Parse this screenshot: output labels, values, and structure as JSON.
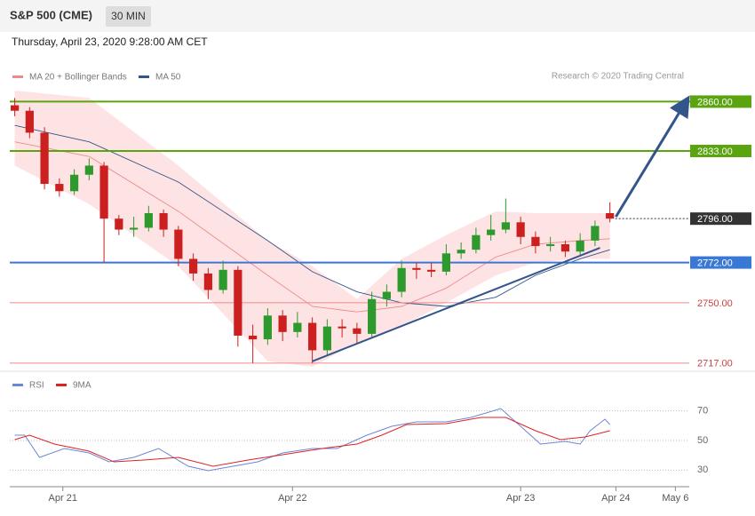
{
  "chart_data": {
    "type": "candlestick",
    "title": "S&P 500 (CME)",
    "interval": "30 MIN",
    "subtitle": "Thursday, April 23, 2020 9:28:00 AM CET",
    "source": "Research © 2020 Trading Central",
    "xlim": [
      0,
      137
    ],
    "xticks": [
      {
        "value": 10.7,
        "label": "Apr 21"
      },
      {
        "value": 57,
        "label": "Apr 22"
      },
      {
        "value": 103,
        "label": "Apr 23"
      },
      {
        "value": 122.2,
        "label": "Apr 24"
      },
      {
        "value": 134.2,
        "label": "May 6"
      }
    ],
    "ylim": [
      2714,
      2867
    ],
    "up_color": "#2e9a2e",
    "down_color": "#cc2020",
    "candles": {
      "x": [
        1,
        4,
        7,
        10,
        13,
        16,
        19,
        22,
        25,
        28,
        31,
        34,
        37,
        40,
        43,
        46,
        49,
        52,
        55,
        58,
        61,
        64,
        67,
        70,
        73,
        76,
        79,
        82,
        85,
        88,
        91,
        94,
        97,
        100,
        103,
        106,
        109,
        112,
        115,
        118,
        121
      ],
      "open": [
        2858,
        2855,
        2843,
        2815,
        2811,
        2820,
        2825,
        2796,
        2790,
        2791,
        2799,
        2790,
        2774,
        2766,
        2757,
        2768,
        2732,
        2730,
        2743,
        2734,
        2739,
        2724,
        2737,
        2736,
        2733,
        2752,
        2756,
        2769,
        2768,
        2767,
        2777,
        2779,
        2787,
        2790,
        2794,
        2786,
        2781,
        2782,
        2778,
        2784,
        2799
      ],
      "high": [
        2862,
        2857,
        2846,
        2818,
        2823,
        2829,
        2827,
        2798,
        2797,
        2803,
        2801,
        2792,
        2777,
        2769,
        2773,
        2770,
        2738,
        2747,
        2746,
        2745,
        2742,
        2741,
        2741,
        2739,
        2756,
        2760,
        2773,
        2772,
        2772,
        2782,
        2783,
        2791,
        2798,
        2807,
        2797,
        2789,
        2786,
        2784,
        2788,
        2795,
        2805
      ],
      "low": [
        2852,
        2840,
        2812,
        2808,
        2809,
        2817,
        2772,
        2787,
        2786,
        2789,
        2786,
        2770,
        2762,
        2752,
        2755,
        2726,
        2717,
        2727,
        2729,
        2731,
        2717,
        2721,
        2731,
        2728,
        2731,
        2748,
        2753,
        2763,
        2764,
        2765,
        2774,
        2777,
        2784,
        2788,
        2782,
        2777,
        2778,
        2775,
        2776,
        2781,
        2794
      ],
      "close": [
        2855,
        2843,
        2815,
        2811,
        2820,
        2825,
        2796,
        2790,
        2791,
        2799,
        2790,
        2774,
        2766,
        2757,
        2768,
        2732,
        2730,
        2743,
        2734,
        2739,
        2724,
        2737,
        2736,
        2733,
        2752,
        2756,
        2769,
        2768,
        2767,
        2777,
        2779,
        2787,
        2790,
        2794,
        2786,
        2781,
        2782,
        2778,
        2784,
        2792,
        2796
      ]
    },
    "x": [
      1,
      16,
      34,
      52,
      61,
      70,
      79,
      88,
      98,
      106,
      115,
      121
    ],
    "series": [
      {
        "name": "MA 20 + Bollinger Bands",
        "color": "#f08a8a",
        "band_color": "#fde3e3",
        "values": [
          2838,
          2830,
          2800,
          2765,
          2748,
          2745,
          2748,
          2758,
          2775,
          2782,
          2784,
          2785
        ],
        "upper": [
          2866,
          2862,
          2825,
          2784,
          2770,
          2752,
          2774,
          2787,
          2800,
          2799,
          2799,
          2799
        ],
        "lower": [
          2825,
          2804,
          2770,
          2718,
          2715,
          2728,
          2737,
          2750,
          2765,
          2772,
          2774,
          2774
        ]
      },
      {
        "name": "MA 50",
        "color": "#34558b",
        "values": [
          2847,
          2838,
          2816,
          2784,
          2767,
          2756,
          2750,
          2748,
          2753,
          2765,
          2774,
          2779
        ]
      }
    ],
    "levels": [
      {
        "value": 2860,
        "label": "2860.00",
        "color": "#5aa50f",
        "style": "solid",
        "box": true
      },
      {
        "value": 2833,
        "label": "2833.00",
        "color": "#5aa50f",
        "style": "solid",
        "box": true
      },
      {
        "value": 2796,
        "label": "2796.00",
        "color": "#333333",
        "style": "dotted",
        "box": true
      },
      {
        "value": 2772,
        "label": "2772.00",
        "color": "#3a78d6",
        "style": "solid",
        "box": true
      },
      {
        "value": 2750,
        "label": "2750.00",
        "color": "#f08a8a",
        "style": "solid",
        "box": false
      },
      {
        "value": 2717,
        "label": "2717.00",
        "color": "#f08a8a",
        "style": "solid",
        "box": false
      }
    ],
    "trendline": {
      "x": [
        61,
        119
      ],
      "y": [
        2718,
        2780
      ],
      "color": "#34558b"
    },
    "arrow": {
      "x": [
        122.2,
        136
      ],
      "y": [
        2797,
        2858.5
      ],
      "color": "#34558b"
    },
    "rsi": {
      "ylim": [
        20,
        80
      ],
      "yticks": [
        30,
        50,
        70
      ],
      "series": [
        {
          "name": "RSI",
          "color": "#6b86d6",
          "x": [
            1,
            3,
            6,
            11,
            16,
            20,
            25,
            30,
            36,
            40,
            45,
            50,
            55,
            61,
            66,
            72,
            77,
            82,
            88,
            93,
            99,
            103,
            107,
            112,
            115,
            117,
            120,
            121
          ],
          "values": [
            53.6,
            53.6,
            38.6,
            44.6,
            41.6,
            35.6,
            38.6,
            44.6,
            32.6,
            29.6,
            32.6,
            35.6,
            41.6,
            44.6,
            44.6,
            53.6,
            59.6,
            62.6,
            62.6,
            65.6,
            71.6,
            59.6,
            47.6,
            49.4,
            47.6,
            56.6,
            64.4,
            60.8
          ]
        },
        {
          "name": "9MA",
          "color": "#dd2222",
          "x": [
            1,
            4,
            9,
            16,
            21,
            27,
            34,
            41,
            48,
            55,
            63,
            70,
            75,
            80,
            88,
            95,
            100,
            106,
            111,
            116,
            121
          ],
          "values": [
            50.6,
            53.6,
            47.6,
            42.8,
            35.6,
            36.8,
            38.6,
            32.6,
            36.8,
            40.4,
            44.6,
            47.6,
            53.6,
            60.8,
            61.4,
            65.6,
            65.6,
            56.6,
            50.6,
            52.4,
            56.6
          ]
        }
      ]
    }
  }
}
